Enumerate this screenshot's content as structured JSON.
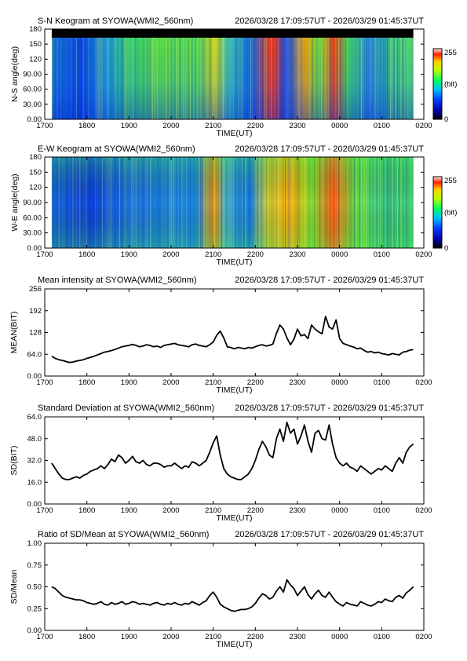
{
  "page": {
    "width": 595,
    "height": 842
  },
  "keograms": [
    {
      "title": "S-N Keogram at SYOWA(WMI2_560nm)",
      "range": "2026/03/28 17:09:57UT - 2026/03/29 01:45:37UT",
      "ylabel": "N-S angle(deg)",
      "xlabel": "TIME(UT)",
      "yticks": [
        "0.00",
        "30.00",
        "60.00",
        "90.00",
        "120",
        "150",
        "180"
      ],
      "xticks": [
        "1700",
        "1800",
        "1900",
        "2000",
        "2100",
        "2200",
        "2300",
        "0000",
        "0100",
        "0200"
      ],
      "colorbar": {
        "max": "255",
        "mid": "(bit)",
        "min": "0"
      }
    },
    {
      "title": "E-W Keogram at SYOWA(WMI2_560nm)",
      "range": "2026/03/28 17:09:57UT - 2026/03/29 01:45:37UT",
      "ylabel": "W-E angle(deg)",
      "xlabel": "TIME(UT)",
      "yticks": [
        "0.00",
        "30.00",
        "60.00",
        "90.00",
        "120",
        "150",
        "180"
      ],
      "xticks": [
        "1700",
        "1800",
        "1900",
        "2000",
        "2100",
        "2200",
        "2300",
        "0000",
        "0100",
        "0200"
      ],
      "colorbar": {
        "max": "255",
        "mid": "(bit)",
        "min": "0"
      }
    }
  ],
  "chart_data": [
    {
      "type": "line",
      "title": "Mean intensity at SYOWA(WMI2_560nm)",
      "range": "2026/03/28 17:09:57UT - 2026/03/29 01:45:37UT",
      "ylabel": "MEAN(BIT)",
      "xlabel": "TIME(UT)",
      "yticks": [
        "0.00",
        "64.0",
        "128",
        "192",
        "256"
      ],
      "xticks": [
        "1700",
        "1800",
        "1900",
        "2000",
        "2100",
        "2200",
        "2300",
        "0000",
        "0100",
        "0200"
      ],
      "ylim": [
        0,
        256
      ],
      "series": [
        {
          "x": [
            "17:10",
            "17:15",
            "17:20",
            "17:25",
            "17:30",
            "17:35",
            "17:40",
            "17:45",
            "17:50",
            "17:55",
            "18:00",
            "18:05",
            "18:10",
            "18:15",
            "18:20",
            "18:25",
            "18:30",
            "18:35",
            "18:40",
            "18:45",
            "18:50",
            "18:55",
            "19:00",
            "19:05",
            "19:10",
            "19:15",
            "19:20",
            "19:25",
            "19:30",
            "19:35",
            "19:40",
            "19:45",
            "19:50",
            "19:55",
            "20:00",
            "20:05",
            "20:10",
            "20:15",
            "20:20",
            "20:25",
            "20:30",
            "20:35",
            "20:40",
            "20:45",
            "20:50",
            "20:55",
            "21:00",
            "21:05",
            "21:10",
            "21:15",
            "21:20",
            "21:25",
            "21:30",
            "21:35",
            "21:40",
            "21:45",
            "21:50",
            "21:55",
            "22:00",
            "22:05",
            "22:10",
            "22:15",
            "22:20",
            "22:25",
            "22:30",
            "22:35",
            "22:40",
            "22:45",
            "22:50",
            "22:55",
            "23:00",
            "23:05",
            "23:10",
            "23:15",
            "23:20",
            "23:25",
            "23:30",
            "23:35",
            "23:40",
            "23:45",
            "23:50",
            "23:55",
            "00:00",
            "00:05",
            "00:10",
            "00:15",
            "00:20",
            "00:25",
            "00:30",
            "00:35",
            "00:40",
            "00:45",
            "00:50",
            "00:55",
            "01:00",
            "01:05",
            "01:10",
            "01:15",
            "01:20",
            "01:25",
            "01:30",
            "01:35",
            "01:40",
            "01:45"
          ],
          "values": [
            58,
            52,
            48,
            46,
            43,
            40,
            41,
            44,
            46,
            48,
            52,
            55,
            58,
            62,
            66,
            70,
            72,
            75,
            78,
            82,
            86,
            88,
            90,
            93,
            90,
            86,
            88,
            92,
            90,
            86,
            88,
            84,
            90,
            92,
            94,
            96,
            92,
            90,
            88,
            86,
            92,
            94,
            90,
            88,
            86,
            92,
            100,
            120,
            132,
            112,
            86,
            84,
            80,
            84,
            82,
            80,
            84,
            82,
            86,
            90,
            92,
            88,
            90,
            94,
            125,
            150,
            138,
            112,
            92,
            108,
            138,
            118,
            122,
            110,
            150,
            138,
            130,
            124,
            175,
            144,
            138,
            165,
            110,
            96,
            92,
            88,
            85,
            80,
            82,
            75,
            70,
            72,
            68,
            70,
            66,
            64,
            62,
            66,
            64,
            62,
            70,
            72,
            76,
            78
          ]
        }
      ]
    },
    {
      "type": "line",
      "title": "Standard Deviation at SYOWA(WMI2_560nm)",
      "range": "2026/03/28 17:09:57UT - 2026/03/29 01:45:37UT",
      "ylabel": "SD(BIT)",
      "xlabel": "TIME(UT)",
      "yticks": [
        "0.00",
        "16.0",
        "32.0",
        "48.0",
        "64.0"
      ],
      "xticks": [
        "1700",
        "1800",
        "1900",
        "2000",
        "2100",
        "2200",
        "2300",
        "0000",
        "0100",
        "0200"
      ],
      "ylim": [
        0,
        64
      ],
      "series": [
        {
          "x": [
            "17:10",
            "17:15",
            "17:20",
            "17:25",
            "17:30",
            "17:35",
            "17:40",
            "17:45",
            "17:50",
            "17:55",
            "18:00",
            "18:05",
            "18:10",
            "18:15",
            "18:20",
            "18:25",
            "18:30",
            "18:35",
            "18:40",
            "18:45",
            "18:50",
            "18:55",
            "19:00",
            "19:05",
            "19:10",
            "19:15",
            "19:20",
            "19:25",
            "19:30",
            "19:35",
            "19:40",
            "19:45",
            "19:50",
            "19:55",
            "20:00",
            "20:05",
            "20:10",
            "20:15",
            "20:20",
            "20:25",
            "20:30",
            "20:35",
            "20:40",
            "20:45",
            "20:50",
            "20:55",
            "21:00",
            "21:05",
            "21:10",
            "21:15",
            "21:20",
            "21:25",
            "21:30",
            "21:35",
            "21:40",
            "21:45",
            "21:50",
            "21:55",
            "22:00",
            "22:05",
            "22:10",
            "22:15",
            "22:20",
            "22:25",
            "22:30",
            "22:35",
            "22:40",
            "22:45",
            "22:50",
            "22:55",
            "23:00",
            "23:05",
            "23:10",
            "23:15",
            "23:20",
            "23:25",
            "23:30",
            "23:35",
            "23:40",
            "23:45",
            "23:50",
            "23:55",
            "00:00",
            "00:05",
            "00:10",
            "00:15",
            "00:20",
            "00:25",
            "00:30",
            "00:35",
            "00:40",
            "00:45",
            "00:50",
            "00:55",
            "01:00",
            "01:05",
            "01:10",
            "01:15",
            "01:20",
            "01:25",
            "01:30",
            "01:35",
            "01:40",
            "01:45"
          ],
          "values": [
            30,
            26,
            22,
            19,
            18,
            18,
            19,
            20,
            19,
            21,
            22,
            24,
            25,
            26,
            28,
            26,
            29,
            33,
            31,
            36,
            34,
            30,
            32,
            35,
            31,
            30,
            32,
            29,
            28,
            30,
            30,
            29,
            27,
            28,
            28,
            30,
            28,
            26,
            28,
            27,
            31,
            30,
            28,
            30,
            32,
            38,
            45,
            50,
            36,
            26,
            22,
            20,
            19,
            18,
            18,
            20,
            22,
            26,
            32,
            40,
            46,
            42,
            36,
            34,
            48,
            55,
            46,
            60,
            52,
            55,
            44,
            50,
            58,
            46,
            38,
            52,
            54,
            48,
            47,
            58,
            44,
            34,
            30,
            28,
            30,
            27,
            26,
            24,
            28,
            26,
            24,
            22,
            24,
            26,
            25,
            28,
            26,
            24,
            30,
            34,
            30,
            38,
            42,
            44
          ]
        }
      ]
    },
    {
      "type": "line",
      "title": "Ratio of SD/Mean at SYOWA(WMI2_560nm)",
      "range": "2026/03/28 17:09:57UT - 2026/03/29 01:45:37UT",
      "ylabel": "SD/Mean",
      "xlabel": "TIME(UT)",
      "yticks": [
        "0.00",
        "0.25",
        "0.50",
        "0.75",
        "1.00"
      ],
      "xticks": [
        "1700",
        "1800",
        "1900",
        "2000",
        "2100",
        "2200",
        "2300",
        "0000",
        "0100",
        "0200"
      ],
      "ylim": [
        0,
        1
      ],
      "series": [
        {
          "x": [
            "17:10",
            "17:15",
            "17:20",
            "17:25",
            "17:30",
            "17:35",
            "17:40",
            "17:45",
            "17:50",
            "17:55",
            "18:00",
            "18:05",
            "18:10",
            "18:15",
            "18:20",
            "18:25",
            "18:30",
            "18:35",
            "18:40",
            "18:45",
            "18:50",
            "18:55",
            "19:00",
            "19:05",
            "19:10",
            "19:15",
            "19:20",
            "19:25",
            "19:30",
            "19:35",
            "19:40",
            "19:45",
            "19:50",
            "19:55",
            "20:00",
            "20:05",
            "20:10",
            "20:15",
            "20:20",
            "20:25",
            "20:30",
            "20:35",
            "20:40",
            "20:45",
            "20:50",
            "20:55",
            "21:00",
            "21:05",
            "21:10",
            "21:15",
            "21:20",
            "21:25",
            "21:30",
            "21:35",
            "21:40",
            "21:45",
            "21:50",
            "21:55",
            "22:00",
            "22:05",
            "22:10",
            "22:15",
            "22:20",
            "22:25",
            "22:30",
            "22:35",
            "22:40",
            "22:45",
            "22:50",
            "22:55",
            "23:00",
            "23:05",
            "23:10",
            "23:15",
            "23:20",
            "23:25",
            "23:30",
            "23:35",
            "23:40",
            "23:45",
            "23:50",
            "23:55",
            "00:00",
            "00:05",
            "00:10",
            "00:15",
            "00:20",
            "00:25",
            "00:30",
            "00:35",
            "00:40",
            "00:45",
            "00:50",
            "00:55",
            "01:00",
            "01:05",
            "01:10",
            "01:15",
            "01:20",
            "01:25",
            "01:30",
            "01:35",
            "01:40",
            "01:45"
          ],
          "values": [
            0.5,
            0.48,
            0.44,
            0.4,
            0.38,
            0.37,
            0.36,
            0.35,
            0.35,
            0.34,
            0.32,
            0.31,
            0.3,
            0.31,
            0.33,
            0.3,
            0.29,
            0.32,
            0.3,
            0.31,
            0.33,
            0.3,
            0.31,
            0.33,
            0.32,
            0.3,
            0.31,
            0.3,
            0.29,
            0.31,
            0.32,
            0.3,
            0.29,
            0.31,
            0.3,
            0.32,
            0.3,
            0.29,
            0.31,
            0.3,
            0.33,
            0.31,
            0.29,
            0.32,
            0.34,
            0.4,
            0.44,
            0.38,
            0.3,
            0.27,
            0.25,
            0.23,
            0.22,
            0.23,
            0.24,
            0.24,
            0.25,
            0.27,
            0.31,
            0.37,
            0.42,
            0.4,
            0.36,
            0.38,
            0.45,
            0.5,
            0.44,
            0.58,
            0.52,
            0.48,
            0.4,
            0.45,
            0.5,
            0.41,
            0.36,
            0.42,
            0.46,
            0.4,
            0.38,
            0.44,
            0.38,
            0.33,
            0.3,
            0.28,
            0.32,
            0.3,
            0.29,
            0.28,
            0.33,
            0.31,
            0.29,
            0.28,
            0.3,
            0.33,
            0.32,
            0.36,
            0.34,
            0.33,
            0.38,
            0.4,
            0.37,
            0.43,
            0.46,
            0.5
          ]
        }
      ]
    }
  ]
}
